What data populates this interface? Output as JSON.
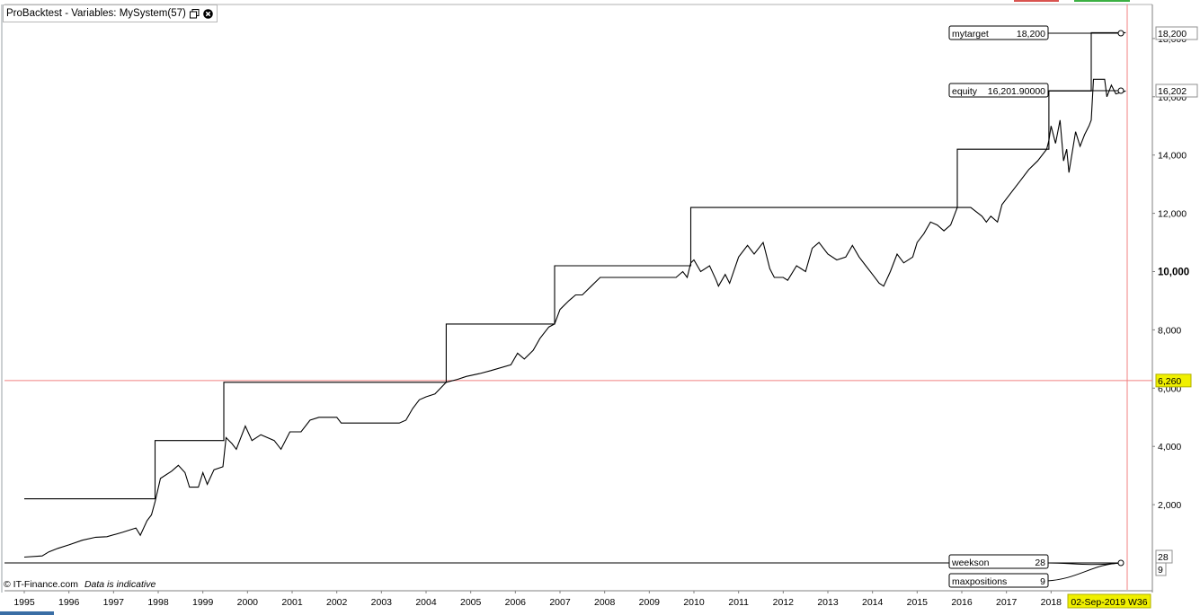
{
  "window": {
    "title": "ProBacktest - Variables: MySystem(57)"
  },
  "footer": {
    "source": "© IT-Finance.com",
    "disclaimer": "Data is indicative"
  },
  "colors": {
    "line": "#000000",
    "reference_line": "#f08080",
    "highlight": "#f0f000",
    "axis": "#808080"
  },
  "cursor": {
    "date_label": "02-Sep-2019 W36",
    "y_label": "6,260",
    "y_value": 6260
  },
  "chart_data": [
    {
      "type": "line",
      "title": "",
      "xlabel": "",
      "ylabel": "",
      "x_ticks": [
        "1995",
        "1996",
        "1997",
        "1998",
        "1999",
        "2000",
        "2001",
        "2002",
        "2003",
        "2004",
        "2005",
        "2006",
        "2007",
        "2008",
        "2009",
        "2010",
        "2011",
        "2012",
        "2013",
        "2014",
        "2015",
        "2016",
        "2017",
        "2018"
      ],
      "y_ticks": [
        "2,000",
        "4,000",
        "6,000",
        "8,000",
        "10,000",
        "12,000",
        "14,000",
        "16,000",
        "18,000"
      ],
      "xlim": [
        1995.0,
        2019.85
      ],
      "ylim": [
        0,
        19000
      ],
      "grid": false,
      "series": [
        {
          "name": "mytarget",
          "label_value": "18,200",
          "axis_value": "18,200",
          "points": [
            [
              1995.0,
              2200
            ],
            [
              1997.93,
              2200
            ],
            [
              1997.93,
              4200
            ],
            [
              1999.47,
              4200
            ],
            [
              1999.47,
              6200
            ],
            [
              2004.45,
              6200
            ],
            [
              2004.45,
              8200
            ],
            [
              2006.88,
              8200
            ],
            [
              2006.88,
              10200
            ],
            [
              2009.93,
              10200
            ],
            [
              2009.93,
              12200
            ],
            [
              2015.9,
              12200
            ],
            [
              2015.9,
              14200
            ],
            [
              2017.95,
              14200
            ],
            [
              2017.95,
              16200
            ],
            [
              2018.9,
              16200
            ],
            [
              2018.9,
              18200
            ],
            [
              2019.67,
              18200
            ]
          ]
        },
        {
          "name": "equity",
          "label_value": "16,201.90000",
          "axis_value": "16,202",
          "points": [
            [
              1995.0,
              200
            ],
            [
              1995.4,
              240
            ],
            [
              1995.55,
              380
            ],
            [
              1995.75,
              500
            ],
            [
              1996.0,
              620
            ],
            [
              1996.3,
              780
            ],
            [
              1996.6,
              880
            ],
            [
              1996.85,
              900
            ],
            [
              1997.2,
              1050
            ],
            [
              1997.5,
              1200
            ],
            [
              1997.6,
              950
            ],
            [
              1997.75,
              1450
            ],
            [
              1997.85,
              1650
            ],
            [
              1997.93,
              2100
            ],
            [
              1998.05,
              2900
            ],
            [
              1998.3,
              3150
            ],
            [
              1998.45,
              3350
            ],
            [
              1998.6,
              3100
            ],
            [
              1998.7,
              2600
            ],
            [
              1998.9,
              2600
            ],
            [
              1999.0,
              3100
            ],
            [
              1999.1,
              2700
            ],
            [
              1999.25,
              3200
            ],
            [
              1999.45,
              3300
            ],
            [
              1999.52,
              4300
            ],
            [
              1999.65,
              4100
            ],
            [
              1999.75,
              3900
            ],
            [
              1999.95,
              4700
            ],
            [
              2000.1,
              4200
            ],
            [
              2000.3,
              4400
            ],
            [
              2000.6,
              4200
            ],
            [
              2000.75,
              3900
            ],
            [
              2000.95,
              4500
            ],
            [
              2001.2,
              4500
            ],
            [
              2001.4,
              4900
            ],
            [
              2001.6,
              5000
            ],
            [
              2002.0,
              5000
            ],
            [
              2002.1,
              4800
            ],
            [
              2003.4,
              4800
            ],
            [
              2003.55,
              4900
            ],
            [
              2003.7,
              5300
            ],
            [
              2003.85,
              5600
            ],
            [
              2004.0,
              5700
            ],
            [
              2004.2,
              5800
            ],
            [
              2004.45,
              6200
            ],
            [
              2004.7,
              6300
            ],
            [
              2004.9,
              6400
            ],
            [
              2005.2,
              6500
            ],
            [
              2005.45,
              6600
            ],
            [
              2005.9,
              6800
            ],
            [
              2006.05,
              7200
            ],
            [
              2006.2,
              7000
            ],
            [
              2006.4,
              7300
            ],
            [
              2006.55,
              7700
            ],
            [
              2006.75,
              8100
            ],
            [
              2006.88,
              8200
            ],
            [
              2007.0,
              8700
            ],
            [
              2007.2,
              9000
            ],
            [
              2007.35,
              9200
            ],
            [
              2007.5,
              9200
            ],
            [
              2007.7,
              9500
            ],
            [
              2007.9,
              9800
            ],
            [
              2008.1,
              9800
            ],
            [
              2009.6,
              9800
            ],
            [
              2009.75,
              10000
            ],
            [
              2009.85,
              9800
            ],
            [
              2009.93,
              10300
            ],
            [
              2010.0,
              10400
            ],
            [
              2010.15,
              10000
            ],
            [
              2010.35,
              10200
            ],
            [
              2010.5,
              9700
            ],
            [
              2010.55,
              9500
            ],
            [
              2010.7,
              9900
            ],
            [
              2010.8,
              9600
            ],
            [
              2011.0,
              10500
            ],
            [
              2011.2,
              10900
            ],
            [
              2011.35,
              10600
            ],
            [
              2011.55,
              11000
            ],
            [
              2011.6,
              10700
            ],
            [
              2011.7,
              10100
            ],
            [
              2011.8,
              9800
            ],
            [
              2012.0,
              9800
            ],
            [
              2012.1,
              9700
            ],
            [
              2012.3,
              10200
            ],
            [
              2012.5,
              10000
            ],
            [
              2012.65,
              10800
            ],
            [
              2012.8,
              11000
            ],
            [
              2013.0,
              10600
            ],
            [
              2013.2,
              10400
            ],
            [
              2013.4,
              10500
            ],
            [
              2013.55,
              10900
            ],
            [
              2013.7,
              10500
            ],
            [
              2013.85,
              10200
            ],
            [
              2014.0,
              9900
            ],
            [
              2014.15,
              9600
            ],
            [
              2014.25,
              9500
            ],
            [
              2014.4,
              10000
            ],
            [
              2014.55,
              10600
            ],
            [
              2014.7,
              10300
            ],
            [
              2014.9,
              10500
            ],
            [
              2015.0,
              11000
            ],
            [
              2015.15,
              11300
            ],
            [
              2015.3,
              11700
            ],
            [
              2015.45,
              11600
            ],
            [
              2015.6,
              11400
            ],
            [
              2015.75,
              11600
            ],
            [
              2015.9,
              12200
            ],
            [
              2016.2,
              12200
            ],
            [
              2016.45,
              11900
            ],
            [
              2016.55,
              11700
            ],
            [
              2016.65,
              11900
            ],
            [
              2016.8,
              11700
            ],
            [
              2016.9,
              12300
            ],
            [
              2017.1,
              12700
            ],
            [
              2017.3,
              13100
            ],
            [
              2017.5,
              13500
            ],
            [
              2017.7,
              13800
            ],
            [
              2017.9,
              14200
            ],
            [
              2017.95,
              14500
            ],
            [
              2018.0,
              15000
            ],
            [
              2018.1,
              14400
            ],
            [
              2018.2,
              15200
            ],
            [
              2018.28,
              13800
            ],
            [
              2018.35,
              14200
            ],
            [
              2018.4,
              13400
            ],
            [
              2018.55,
              14800
            ],
            [
              2018.65,
              14300
            ],
            [
              2018.75,
              14700
            ],
            [
              2018.85,
              15000
            ],
            [
              2018.9,
              15200
            ],
            [
              2018.95,
              16600
            ],
            [
              2019.2,
              16600
            ],
            [
              2019.25,
              16000
            ],
            [
              2019.35,
              16400
            ],
            [
              2019.45,
              16100
            ],
            [
              2019.67,
              16200
            ]
          ]
        }
      ]
    },
    {
      "type": "line",
      "title": "",
      "series": [
        {
          "name": "weekson",
          "label_value": "28",
          "axis_value": "28"
        },
        {
          "name": "maxpositions",
          "label_value": "9",
          "axis_value": "9"
        }
      ]
    }
  ]
}
